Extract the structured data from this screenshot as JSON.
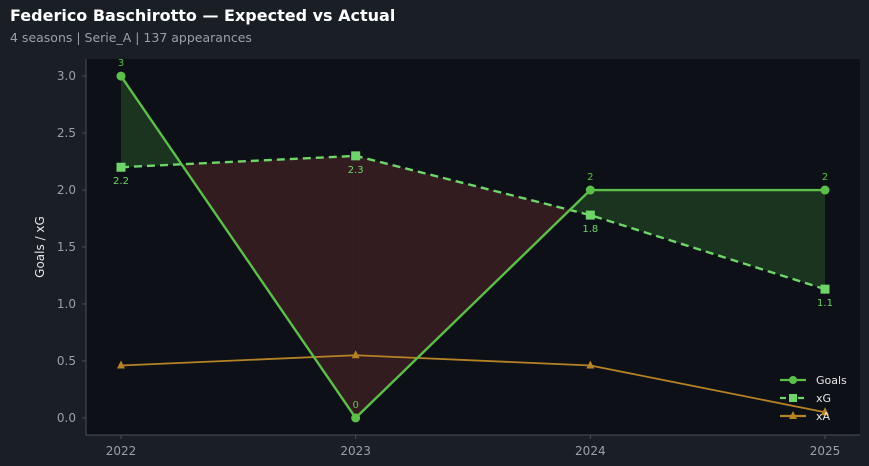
{
  "header": {
    "title": "Federico Baschirotto — Expected vs Actual",
    "subtitle": "4 seasons | Serie_A | 137 appearances"
  },
  "chart_data": {
    "type": "line",
    "title": "Federico Baschirotto — Expected vs Actual",
    "subtitle": "4 seasons | Serie_A | 137 appearances",
    "xlabel": "",
    "ylabel": "Goals / xG",
    "x": [
      "2022",
      "2023",
      "2024",
      "2025"
    ],
    "ylim": [
      -0.15,
      3.15
    ],
    "yticks": [
      0.0,
      0.5,
      1.0,
      1.5,
      2.0,
      2.5,
      3.0
    ],
    "ytick_labels": [
      "0.0",
      "0.5",
      "1.0",
      "1.5",
      "2.0",
      "2.5",
      "3.0"
    ],
    "grid": false,
    "legend": "bottom-right",
    "series": [
      {
        "name": "Goals",
        "values": [
          3,
          0,
          2,
          2
        ],
        "labels": [
          "3",
          "0",
          "2",
          "2"
        ],
        "color": "#5cbf4a",
        "marker": "circle",
        "style": "solid"
      },
      {
        "name": "xG",
        "values": [
          2.2,
          2.3,
          1.78,
          1.13
        ],
        "labels": [
          "2.2",
          "2.3",
          "1.8",
          "1.1"
        ],
        "color": "#6fd46a",
        "marker": "square",
        "style": "dashed"
      },
      {
        "name": "xA",
        "values": [
          0.46,
          0.55,
          0.46,
          0.05
        ],
        "color": "#b58226",
        "marker": "triangle",
        "style": "solid"
      }
    ],
    "fill_colors": {
      "over": "#1f3b22",
      "under": "#3a1f22"
    },
    "colors": {
      "background": "#1a1e25",
      "plot_background": "#0d1117",
      "axis": "#4a4f57",
      "tick_text": "#9aa0a8"
    }
  }
}
